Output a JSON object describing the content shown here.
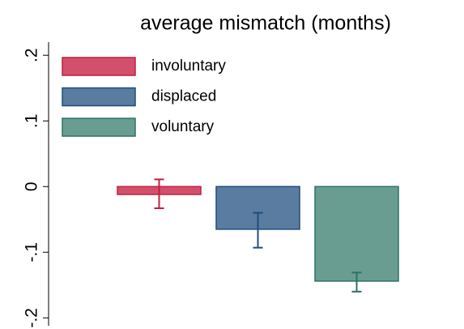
{
  "chart_data": {
    "type": "bar",
    "title": "average mismatch (months)",
    "series": [
      {
        "name": "involuntary",
        "color": "#d2506c",
        "edge": "#c0213f",
        "values": [
          -0.012
        ],
        "lower": [
          -0.033
        ],
        "upper": [
          0.011
        ]
      },
      {
        "name": "displaced",
        "color": "#5a7ca0",
        "edge": "#1f4e79",
        "values": [
          -0.065
        ],
        "lower": [
          -0.093
        ],
        "upper": [
          -0.04
        ]
      },
      {
        "name": "voluntary",
        "color": "#6a9d92",
        "edge": "#2f7066",
        "values": [
          -0.144
        ],
        "lower": [
          -0.16
        ],
        "upper": [
          -0.131
        ]
      }
    ],
    "ylim": [
      -0.212,
      0.22
    ],
    "yticks": [
      {
        "value": -0.2,
        "label": "-.2"
      },
      {
        "value": -0.1,
        "label": "-.1"
      },
      0,
      {
        "value": 0.1,
        "label": ".1"
      },
      {
        "value": 0.2,
        "label": ".2"
      }
    ],
    "legend": "upper left"
  }
}
